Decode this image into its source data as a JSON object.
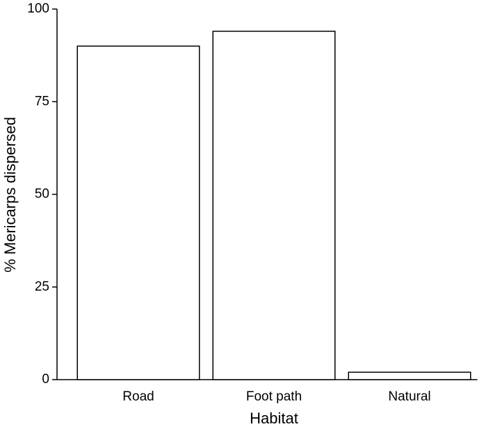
{
  "chart_data": {
    "type": "bar",
    "x_label": "Habitat",
    "y_label": "% Mericarps dispersed",
    "categories": [
      "Road",
      "Foot path",
      "Natural"
    ],
    "values": [
      90,
      94,
      2
    ],
    "color": "#ffffff",
    "edge_color": "#000000",
    "ylim": [
      0,
      100
    ],
    "yticks": [
      0,
      25,
      50,
      75,
      100
    ],
    "grid": false
  }
}
